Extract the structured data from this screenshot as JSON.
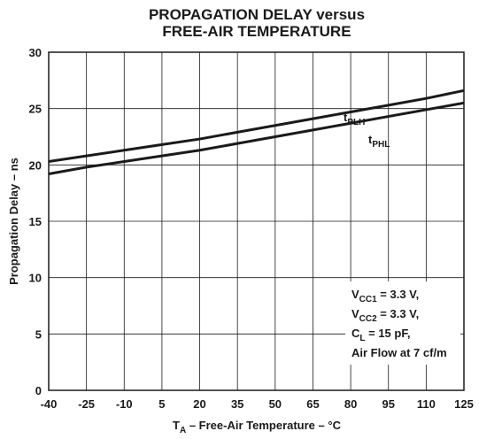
{
  "chart_data": {
    "type": "line",
    "title": [
      "PROPAGATION DELAY versus",
      "FREE-AIR TEMPERATURE"
    ],
    "y_label": "Propagation Delay – ns",
    "x_label": [
      "T",
      "A",
      " – Free-Air Temperature – °C"
    ],
    "x": [
      -40,
      -25,
      -10,
      5,
      20,
      35,
      50,
      65,
      80,
      95,
      110,
      125
    ],
    "series": [
      {
        "name": [
          "t",
          "PLH"
        ],
        "color": "#1a1a1a",
        "values": [
          20.3,
          20.8,
          21.3,
          21.8,
          22.3,
          22.9,
          23.5,
          24.1,
          24.7,
          25.3,
          25.9,
          26.6
        ]
      },
      {
        "name": [
          "t",
          "PHL"
        ],
        "color": "#1a1a1a",
        "values": [
          19.2,
          19.8,
          20.3,
          20.8,
          21.3,
          21.9,
          22.5,
          23.1,
          23.7,
          24.3,
          24.9,
          25.5
        ]
      }
    ],
    "xlim": [
      -40,
      125
    ],
    "xticks": [
      -40,
      -25,
      -10,
      5,
      20,
      35,
      50,
      65,
      80,
      95,
      110,
      125
    ],
    "ylim": [
      0,
      30
    ],
    "yticks": [
      0,
      5,
      10,
      15,
      20,
      25,
      30
    ],
    "grid": true,
    "annotations": [
      [
        "V",
        "CC1",
        " = 3.3 V,"
      ],
      [
        "V",
        "CC2",
        " = 3.3 V,"
      ],
      [
        "C",
        "L",
        "  = 15 pF,"
      ],
      [
        "Air Flow at 7 cf/m"
      ]
    ]
  }
}
